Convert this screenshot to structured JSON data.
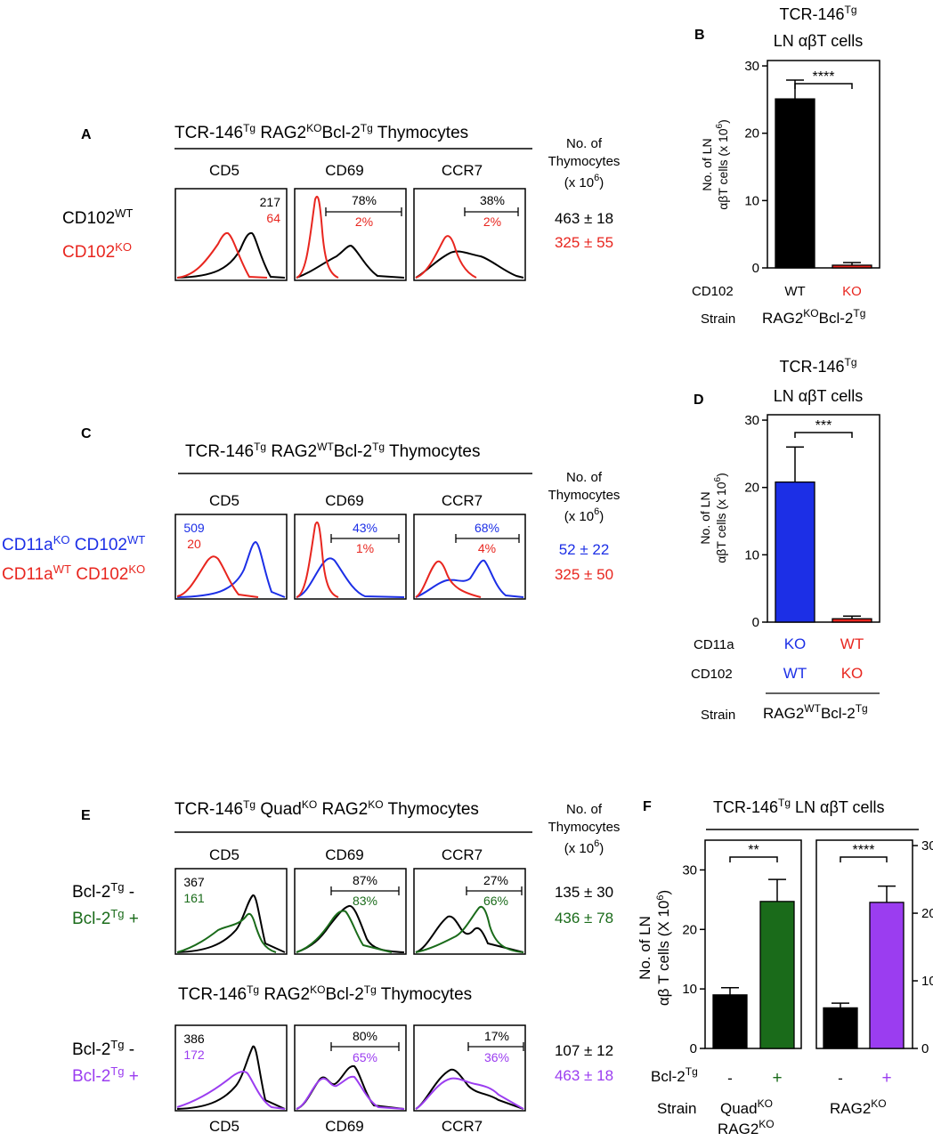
{
  "colors": {
    "black": "#000000",
    "red": "#e8261f",
    "blue": "#1c2fe6",
    "green": "#1a6b1a",
    "purple": "#9b3df0"
  },
  "shared": {
    "cd5": "CD5",
    "cd69": "CD69",
    "ccr7": "CCR7",
    "no_of": "No. of",
    "thymocytes": "Thymocytes",
    "x10": "(x 10",
    "x10_sup": "6",
    "x10_close": ")",
    "tg": "Tg",
    "ko": "KO",
    "wt": "WT"
  },
  "panelA": {
    "label": "A",
    "title_pre": "TCR-146",
    "title_mid": " RAG2",
    "title_mid2": "Bcl-2",
    "title_end": " Thymocytes",
    "row1_name": "CD102",
    "row1_sup": "WT",
    "row2_name": "CD102",
    "row2_sup": "KO",
    "cd5_top": "217",
    "cd5_bot": "64",
    "cd69_top": "78%",
    "cd69_bot": "2%",
    "ccr7_top": "38%",
    "ccr7_bot": "2%",
    "count_top": "463 ± 18",
    "count_bot": "325 ± 55"
  },
  "panelC": {
    "label": "C",
    "title_pre": "TCR-146",
    "title_mid": " RAG2",
    "title_mid2": "Bcl-2",
    "title_end": " Thymocytes",
    "row1_a": "CD11a",
    "row1_a_sup": "KO",
    "row1_b": " CD102",
    "row1_b_sup": "WT",
    "row2_a": "CD11a",
    "row2_a_sup": "WT",
    "row2_b": " CD102",
    "row2_b_sup": "KO",
    "cd5_top": "509",
    "cd5_bot": "20",
    "cd69_top": "43%",
    "cd69_bot": "1%",
    "ccr7_top": "68%",
    "ccr7_bot": "4%",
    "count_top": "52 ± 22",
    "count_bot": "325 ± 50"
  },
  "panelE": {
    "label": "E",
    "title1_pre": "TCR-146",
    "title1_mid": " Quad",
    "title1_mid2": " RAG2",
    "title1_end": " Thymocytes",
    "title2_pre": "TCR-146",
    "title2_mid": " RAG2",
    "title2_mid2": "Bcl-2",
    "title2_end": " Thymocytes",
    "bcl": "Bcl-2",
    "minus": " -",
    "plus": " +",
    "g1": {
      "cd5_top": "367",
      "cd5_bot": "161",
      "cd69_top": "87%",
      "cd69_bot": "83%",
      "ccr7_top": "27%",
      "ccr7_bot": "66%",
      "count_top": "135 ± 30",
      "count_bot": "436 ± 78"
    },
    "g2": {
      "cd5_top": "386",
      "cd5_bot": "172",
      "cd69_top": "80%",
      "cd69_bot": "65%",
      "ccr7_top": "17%",
      "ccr7_bot": "36%",
      "count_top": "107 ± 12",
      "count_bot": "463 ± 18"
    }
  },
  "panelB": {
    "label": "B",
    "head1_pre": "TCR-146",
    "head2": "LN αβT cells",
    "ylabel1": "No. of LN",
    "ylabel2": "αβT cells (x 10",
    "ylabel_sup": "6",
    "ylabel_close": ")",
    "sig": "****",
    "row1": "CD102",
    "row2": "Strain",
    "strain_a": "RAG2",
    "strain_b": "Bcl-2"
  },
  "panelD": {
    "label": "D",
    "head1_pre": "TCR-146",
    "head2": "LN αβT cells",
    "ylabel1": "No. of LN",
    "ylabel2": "αβT cells (x 10",
    "ylabel_sup": "6",
    "ylabel_close": ")",
    "sig": "***",
    "row1": "CD11a",
    "row2": "CD102",
    "row3": "Strain",
    "strain_a": "RAG2",
    "strain_b": "Bcl-2"
  },
  "panelF": {
    "label": "F",
    "head_pre": "TCR-146",
    "head_post": " LN αβT cells",
    "ylabel1": "No. of LN",
    "ylabel2": "αβ T cells (X 10",
    "ylabel_sup": "6",
    "ylabel_close": ")",
    "sig1": "**",
    "sig2": "****",
    "row1": "Bcl-2",
    "row2": "Strain",
    "minus": "-",
    "plus": "+",
    "quad": "Quad",
    "rag": "RAG2"
  },
  "chart_data": [
    {
      "panel": "B",
      "type": "bar",
      "title": "TCR-146Tg LN αβT cells",
      "ylabel": "No. of LN αβT cells (x 10^6)",
      "ylim": [
        0,
        30
      ],
      "yticks": [
        0,
        10,
        20,
        30
      ],
      "categories": [
        "WT",
        "KO"
      ],
      "values": [
        25.1,
        0.4
      ],
      "errors": [
        2.8,
        0.4
      ],
      "colors": [
        "#000000",
        "#e8261f"
      ],
      "strain": "RAG2KO Bcl-2Tg",
      "significance": "****"
    },
    {
      "panel": "D",
      "type": "bar",
      "title": "TCR-146Tg LN αβT cells",
      "ylabel": "No. of LN αβT cells (x 10^6)",
      "ylim": [
        0,
        30
      ],
      "yticks": [
        0,
        10,
        20,
        30
      ],
      "categories": [
        "CD11a KO / CD102 WT",
        "CD11a WT / CD102 KO"
      ],
      "values": [
        20.8,
        0.5
      ],
      "errors": [
        5.2,
        0.4
      ],
      "colors": [
        "#1c2fe6",
        "#e8261f"
      ],
      "strain": "RAG2WT Bcl-2Tg",
      "significance": "***"
    },
    {
      "panel": "F",
      "type": "bar",
      "title": "TCR-146Tg LN αβT cells",
      "ylabel": "No. of LN αβ T cells (X 10^6)",
      "ylim": [
        0,
        35
      ],
      "yticks": [
        0,
        10,
        20,
        30
      ],
      "groups": [
        {
          "strain": "QuadKO RAG2KO",
          "categories": [
            "-",
            "+"
          ],
          "values": [
            9.0,
            24.7
          ],
          "errors": [
            1.2,
            3.7
          ],
          "colors": [
            "#000000",
            "#1a6b1a"
          ],
          "significance": "**"
        },
        {
          "strain": "RAG2KO",
          "categories": [
            "-",
            "+"
          ],
          "values": [
            6.0,
            21.6
          ],
          "errors": [
            0.7,
            2.4
          ],
          "colors": [
            "#000000",
            "#9b3df0"
          ],
          "significance": "****"
        }
      ]
    }
  ]
}
